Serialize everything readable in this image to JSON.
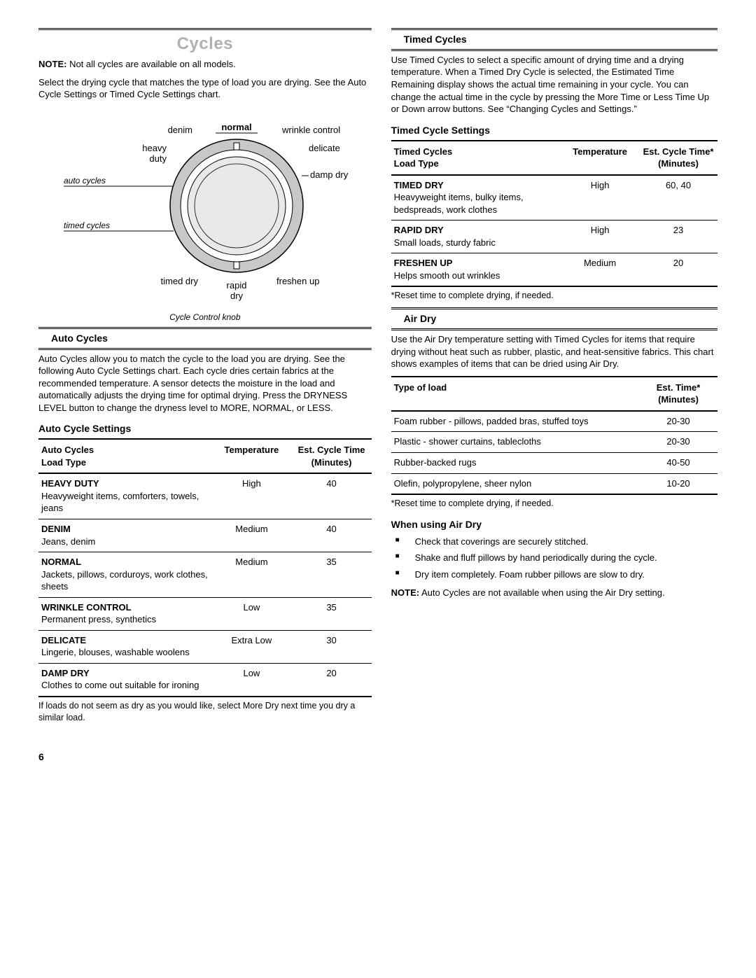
{
  "page_number": "6",
  "left": {
    "main_title": "Cycles",
    "note_label": "NOTE:",
    "note_text": " Not all cycles are available on all models.",
    "intro": "Select the drying cycle that matches the type of load you are drying. See the Auto Cycle Settings or Timed Cycle Settings chart.",
    "knob": {
      "caption": "Cycle Control knob",
      "label_auto": "auto cycles",
      "label_timed": "timed cycles",
      "labels": {
        "heavy_duty": "heavy\nduty",
        "denim": "denim",
        "normal": "normal",
        "wrinkle": "wrinkle control",
        "delicate": "delicate",
        "damp_dry": "damp dry",
        "freshen": "freshen up",
        "rapid": "rapid\ndry",
        "timed_dry": "timed dry"
      },
      "colors": {
        "outer_ring": "#c8c8c8",
        "inner_fill": "#e9e9e9",
        "stroke": "#000000"
      }
    },
    "auto_section_title": "Auto Cycles",
    "auto_intro": "Auto Cycles allow you to match the cycle to the load you are drying. See the following Auto Cycle Settings chart. Each cycle dries certain fabrics at the recommended temperature. A sensor detects the moisture in the load and automatically adjusts the drying time for optimal drying. Press the DRYNESS LEVEL button to change the dryness level to MORE, NORMAL, or LESS.",
    "auto_settings_title": "Auto Cycle Settings",
    "auto_table": {
      "col1a": "Auto Cycles",
      "col1b": "Load Type",
      "col2": "Temperature",
      "col3a": "Est. Cycle Time",
      "col3b": "(Minutes)",
      "rows": [
        {
          "name": "HEAVY DUTY",
          "desc": "Heavyweight items, comforters, towels, jeans",
          "temp": "High",
          "time": "40"
        },
        {
          "name": "DENIM",
          "desc": "Jeans, denim",
          "temp": "Medium",
          "time": "40"
        },
        {
          "name": "NORMAL",
          "desc": "Jackets, pillows, corduroys, work clothes, sheets",
          "temp": "Medium",
          "time": "35"
        },
        {
          "name": "WRINKLE CONTROL",
          "desc": "Permanent press, synthetics",
          "temp": "Low",
          "time": "35"
        },
        {
          "name": "DELICATE",
          "desc": "Lingerie, blouses, washable woolens",
          "temp": "Extra Low",
          "time": "30"
        },
        {
          "name": "DAMP DRY",
          "desc": "Clothes to come out suitable for ironing",
          "temp": "Low",
          "time": "20"
        }
      ]
    },
    "auto_footer": "If loads do not seem as dry as you would like, select More Dry next time you dry a similar load."
  },
  "right": {
    "timed_section_title": "Timed Cycles",
    "timed_intro": "Use Timed Cycles to select a specific amount of drying time and a drying temperature. When a Timed Dry Cycle is selected, the Estimated Time Remaining display shows the actual time remaining in your cycle. You can change the actual time in the cycle by pressing the More Time or Less Time Up or Down arrow buttons. See “Changing Cycles and Settings.”",
    "timed_settings_title": "Timed Cycle Settings",
    "timed_table": {
      "col1a": "Timed Cycles",
      "col1b": "Load Type",
      "col2": "Temperature",
      "col3a": "Est. Cycle Time*",
      "col3b": "(Minutes)",
      "rows": [
        {
          "name": "TIMED DRY",
          "desc": "Heavyweight items, bulky items, bedspreads, work clothes",
          "temp": "High",
          "time": "60, 40"
        },
        {
          "name": "RAPID DRY",
          "desc": "Small loads, sturdy fabric",
          "temp": "High",
          "time": "23"
        },
        {
          "name": "FRESHEN UP",
          "desc": "Helps smooth out wrinkles",
          "temp": "Medium",
          "time": "20"
        }
      ]
    },
    "timed_footnote": "*Reset time to complete drying, if needed.",
    "airdry_section_title": "Air Dry",
    "airdry_intro": "Use the Air Dry temperature setting with Timed Cycles for items that require drying without heat such as rubber, plastic, and heat-sensitive fabrics. This chart shows examples of items that can be dried using Air Dry.",
    "airdry_table": {
      "col1": "Type of load",
      "col2a": "Est. Time*",
      "col2b": "(Minutes)",
      "rows": [
        {
          "type": "Foam rubber - pillows, padded bras, stuffed toys",
          "time": "20-30"
        },
        {
          "type": "Plastic - shower curtains, tablecloths",
          "time": "20-30"
        },
        {
          "type": "Rubber-backed rugs",
          "time": "40-50"
        },
        {
          "type": "Olefin, polypropylene, sheer nylon",
          "time": "10-20"
        }
      ]
    },
    "airdry_footnote": "*Reset time to complete drying, if needed.",
    "when_using_title": "When using Air Dry",
    "bullets": [
      "Check that coverings are securely stitched.",
      "Shake and fluff pillows by hand periodically during the cycle.",
      "Dry item completely. Foam rubber pillows are slow to dry."
    ],
    "closing_note_label": "NOTE:",
    "closing_note_text": " Auto Cycles are not available when using the Air Dry setting."
  }
}
